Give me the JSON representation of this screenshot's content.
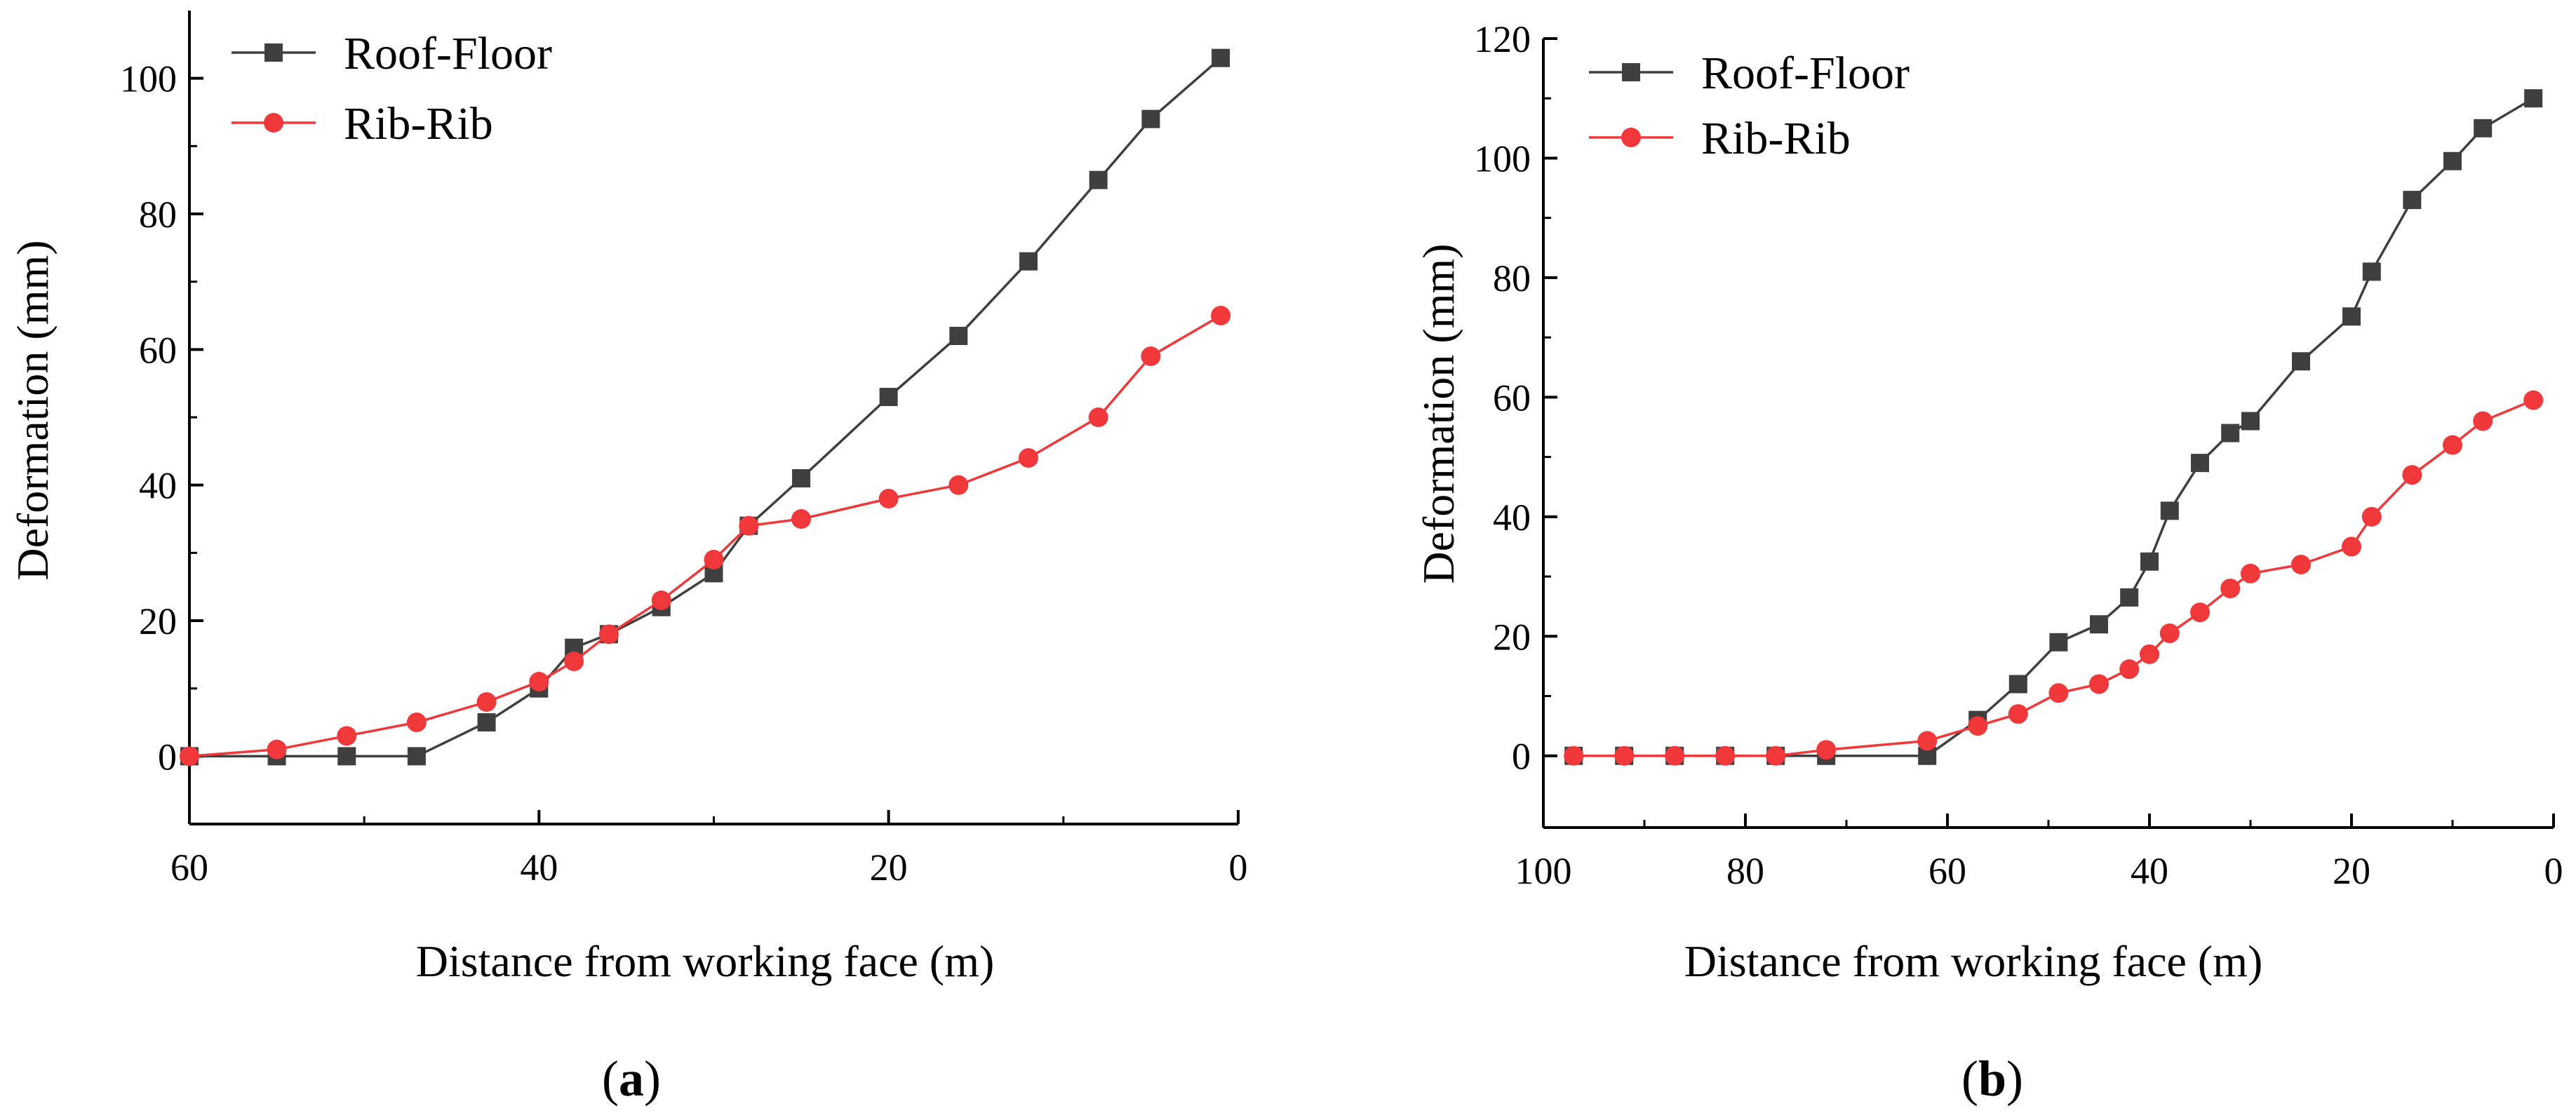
{
  "colors": {
    "roof_floor": "#3f3f3f",
    "rib_rib": "#f0383b",
    "axis": "#000000"
  },
  "panels": [
    {
      "label": "a"
    },
    {
      "label": "b"
    }
  ],
  "chart_data": [
    {
      "type": "line",
      "panel": "a",
      "xlabel": "Distance from working face (m)",
      "ylabel": "Deformation (mm)",
      "xlim": [
        60,
        0
      ],
      "ylim": [
        -10,
        110
      ],
      "xticks": [
        60,
        40,
        20,
        0
      ],
      "xticks_minor": [
        50,
        30,
        10
      ],
      "yticks": [
        0,
        20,
        40,
        60,
        80,
        100
      ],
      "yticks_minor": [
        10,
        30,
        50,
        70,
        90
      ],
      "x_tick_labels": [
        "60",
        "40",
        "20",
        "0"
      ],
      "y_tick_labels": [
        "0",
        "20",
        "40",
        "60",
        "80",
        "100"
      ],
      "legend_position": "top-left",
      "series": [
        {
          "name": "Roof-Floor",
          "marker": "square",
          "color_key": "roof_floor",
          "x": [
            60,
            55,
            51,
            47,
            43,
            40,
            38,
            36,
            33,
            30,
            28,
            25,
            20,
            16,
            12,
            8,
            5,
            1
          ],
          "y": [
            0,
            0,
            0,
            0,
            5,
            10,
            16,
            18,
            22,
            27,
            34,
            41,
            53,
            62,
            73,
            85,
            94,
            103
          ]
        },
        {
          "name": "Rib-Rib",
          "marker": "circle",
          "color_key": "rib_rib",
          "x": [
            60,
            55,
            51,
            47,
            43,
            40,
            38,
            36,
            33,
            30,
            28,
            25,
            20,
            16,
            12,
            8,
            5,
            1
          ],
          "y": [
            0,
            1,
            3,
            5,
            8,
            11,
            14,
            18,
            23,
            29,
            34,
            35,
            38,
            40,
            44,
            50,
            59,
            65
          ]
        }
      ]
    },
    {
      "type": "line",
      "panel": "b",
      "xlabel": "Distance from working face (m)",
      "ylabel": "Deformation (mm)",
      "xlim": [
        100,
        0
      ],
      "ylim": [
        -12,
        120
      ],
      "xticks": [
        100,
        80,
        60,
        40,
        20,
        0
      ],
      "xticks_minor": [
        90,
        70,
        50,
        30,
        10
      ],
      "yticks": [
        0,
        20,
        40,
        60,
        80,
        100,
        120
      ],
      "yticks_minor": [
        10,
        30,
        50,
        70,
        90,
        110
      ],
      "x_tick_labels": [
        "100",
        "80",
        "60",
        "40",
        "20",
        "0"
      ],
      "y_tick_labels": [
        "0",
        "20",
        "40",
        "60",
        "80",
        "100",
        "120"
      ],
      "legend_position": "top-left",
      "series": [
        {
          "name": "Roof-Floor",
          "marker": "square",
          "color_key": "roof_floor",
          "x": [
            97,
            92,
            87,
            82,
            77,
            72,
            62,
            57,
            53,
            49,
            45,
            42,
            40,
            38,
            35,
            32,
            30,
            25,
            20,
            18,
            14,
            10,
            7,
            2
          ],
          "y": [
            0,
            0,
            0,
            0,
            0,
            0,
            0,
            6,
            12,
            19,
            22,
            26.5,
            32.5,
            41,
            49,
            54,
            56,
            66,
            73.5,
            81,
            93,
            99.5,
            105,
            110
          ]
        },
        {
          "name": "Rib-Rib",
          "marker": "circle",
          "color_key": "rib_rib",
          "x": [
            97,
            92,
            87,
            82,
            77,
            72,
            62,
            57,
            53,
            49,
            45,
            42,
            40,
            38,
            35,
            32,
            30,
            25,
            20,
            18,
            14,
            10,
            7,
            2
          ],
          "y": [
            0,
            0,
            0,
            0,
            0,
            1,
            2.5,
            5,
            7,
            10.5,
            12,
            14.5,
            17,
            20.5,
            24,
            28,
            30.5,
            32,
            35,
            40,
            47,
            52,
            56,
            59.5
          ]
        }
      ]
    }
  ]
}
